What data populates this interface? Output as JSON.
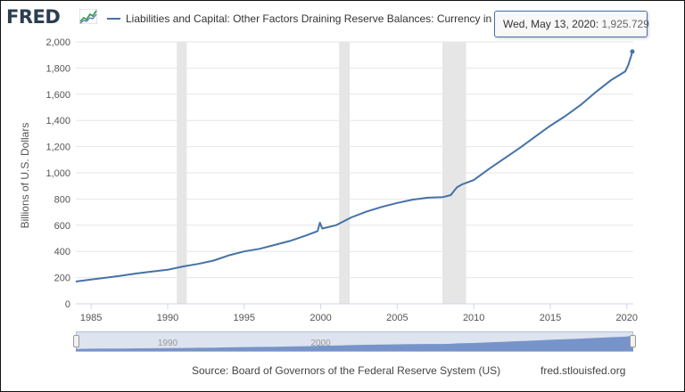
{
  "header": {
    "logo_text": "FRED",
    "logo_icon": "fred-graph-icon",
    "legend_label": "Liabilities and Capital: Other Factors Draining Reserve Balances: Currency in Circulati"
  },
  "tooltip": {
    "date": "Wed, May 13, 2020: ",
    "value": "1,925.729"
  },
  "footer": {
    "source": "Source: Board of Governors of the Federal Reserve System (US)",
    "site": "fred.stlouisfed.org"
  },
  "navigator": {
    "tick_labels": [
      "1990",
      "2000"
    ]
  },
  "colors": {
    "series": "#4572a7",
    "recession": "#e6e6e6",
    "grid": "#e6e6e6",
    "navigator_fill": "#6b8bc5"
  },
  "chart_data": {
    "type": "line",
    "xlabel": "",
    "ylabel": "Billions of U.S. Dollars",
    "xlim": [
      1984.0,
      2020.42
    ],
    "ylim": [
      0,
      2000
    ],
    "y_ticks": [
      "0",
      "200",
      "400",
      "600",
      "800",
      "1,000",
      "1,200",
      "1,400",
      "1,600",
      "1,800",
      "2,000"
    ],
    "x_ticks": [
      "1985",
      "1990",
      "1995",
      "2000",
      "2005",
      "2010",
      "2015",
      "2020"
    ],
    "grid": true,
    "legend_position": "top",
    "recessions": [
      [
        1990.6,
        1991.25
      ],
      [
        2001.2,
        2001.9
      ],
      [
        2007.95,
        2009.5
      ]
    ],
    "series": [
      {
        "name": "Liabilities and Capital: Other Factors Draining Reserve Balances: Currency in Circulation",
        "x": [
          1984.0,
          1985.0,
          1986.0,
          1987.0,
          1988.0,
          1989.0,
          1990.0,
          1991.0,
          1992.0,
          1993.0,
          1994.0,
          1995.0,
          1996.0,
          1997.0,
          1998.0,
          1999.0,
          1999.8,
          1999.95,
          2000.1,
          2001.0,
          2002.0,
          2003.0,
          2004.0,
          2005.0,
          2006.0,
          2007.0,
          2008.0,
          2008.5,
          2008.9,
          2009.2,
          2010.0,
          2011.0,
          2012.0,
          2013.0,
          2014.0,
          2015.0,
          2016.0,
          2017.0,
          2018.0,
          2019.0,
          2019.9,
          2020.1,
          2020.25,
          2020.36
        ],
        "values": [
          170,
          185,
          200,
          215,
          232,
          247,
          260,
          285,
          305,
          330,
          370,
          400,
          420,
          450,
          480,
          520,
          555,
          620,
          575,
          600,
          660,
          705,
          740,
          770,
          795,
          810,
          815,
          830,
          890,
          910,
          945,
          1030,
          1110,
          1190,
          1275,
          1360,
          1435,
          1520,
          1620,
          1710,
          1775,
          1825,
          1880,
          1925.729
        ]
      }
    ]
  }
}
